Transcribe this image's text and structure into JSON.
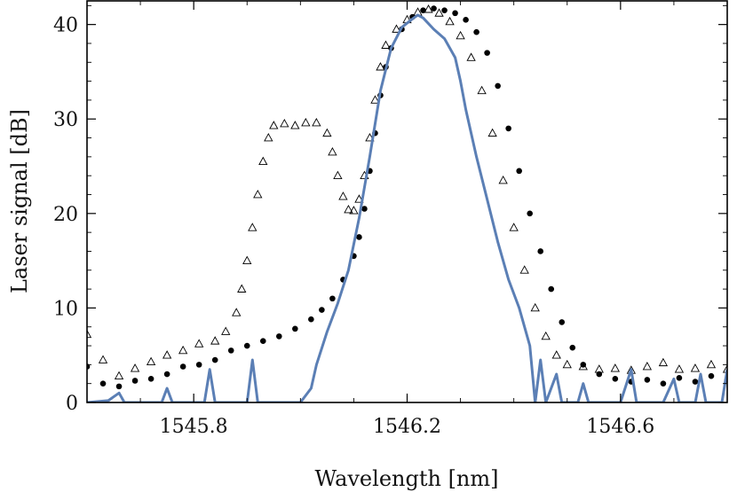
{
  "chart_data": {
    "type": "scatter",
    "title": "",
    "xlabel": "Wavelength [nm]",
    "ylabel": "Laser signal [dB]",
    "xlim": [
      1545.6,
      1546.8
    ],
    "ylim": [
      0,
      42.5
    ],
    "x_ticks": [
      1545.8,
      1546.2,
      1546.6
    ],
    "x_tick_labels": [
      "1545.8",
      "1546.2",
      "1546.6"
    ],
    "y_ticks": [
      0,
      10,
      20,
      30,
      40
    ],
    "y_tick_labels": [
      "0",
      "10",
      "20",
      "30",
      "40"
    ],
    "grid": false,
    "legend": "none",
    "series": [
      {
        "name": "open triangles",
        "style": "triangle-open",
        "color": "#000000",
        "points": [
          [
            1545.6,
            7.2
          ],
          [
            1545.63,
            4.5
          ],
          [
            1545.66,
            2.8
          ],
          [
            1545.69,
            3.6
          ],
          [
            1545.72,
            4.3
          ],
          [
            1545.75,
            5.0
          ],
          [
            1545.78,
            5.5
          ],
          [
            1545.81,
            6.2
          ],
          [
            1545.84,
            6.5
          ],
          [
            1545.86,
            7.5
          ],
          [
            1545.88,
            9.5
          ],
          [
            1545.89,
            12.0
          ],
          [
            1545.9,
            15.0
          ],
          [
            1545.91,
            18.5
          ],
          [
            1545.92,
            22.0
          ],
          [
            1545.93,
            25.5
          ],
          [
            1545.94,
            28.0
          ],
          [
            1545.95,
            29.3
          ],
          [
            1545.97,
            29.5
          ],
          [
            1545.99,
            29.3
          ],
          [
            1546.01,
            29.6
          ],
          [
            1546.03,
            29.6
          ],
          [
            1546.05,
            28.5
          ],
          [
            1546.06,
            26.5
          ],
          [
            1546.07,
            24.0
          ],
          [
            1546.08,
            21.8
          ],
          [
            1546.09,
            20.4
          ],
          [
            1546.1,
            20.3
          ],
          [
            1546.11,
            21.5
          ],
          [
            1546.12,
            24.0
          ],
          [
            1546.13,
            28.0
          ],
          [
            1546.14,
            32.0
          ],
          [
            1546.15,
            35.5
          ],
          [
            1546.16,
            37.8
          ],
          [
            1546.18,
            39.5
          ],
          [
            1546.2,
            40.5
          ],
          [
            1546.22,
            41.3
          ],
          [
            1546.24,
            41.6
          ],
          [
            1546.26,
            41.2
          ],
          [
            1546.28,
            40.3
          ],
          [
            1546.3,
            38.8
          ],
          [
            1546.32,
            36.5
          ],
          [
            1546.34,
            33.0
          ],
          [
            1546.36,
            28.5
          ],
          [
            1546.38,
            23.5
          ],
          [
            1546.4,
            18.5
          ],
          [
            1546.42,
            14.0
          ],
          [
            1546.44,
            10.0
          ],
          [
            1546.46,
            7.0
          ],
          [
            1546.48,
            5.0
          ],
          [
            1546.5,
            4.0
          ],
          [
            1546.53,
            3.8
          ],
          [
            1546.56,
            3.5
          ],
          [
            1546.59,
            3.6
          ],
          [
            1546.62,
            3.4
          ],
          [
            1546.65,
            3.8
          ],
          [
            1546.68,
            4.2
          ],
          [
            1546.71,
            3.5
          ],
          [
            1546.74,
            3.6
          ],
          [
            1546.77,
            4.0
          ],
          [
            1546.8,
            3.5
          ]
        ]
      },
      {
        "name": "filled circles",
        "style": "circle-filled",
        "color": "#000000",
        "points": [
          [
            1545.6,
            3.8
          ],
          [
            1545.63,
            2.0
          ],
          [
            1545.66,
            1.7
          ],
          [
            1545.69,
            2.3
          ],
          [
            1545.72,
            2.5
          ],
          [
            1545.75,
            3.0
          ],
          [
            1545.78,
            3.8
          ],
          [
            1545.81,
            4.0
          ],
          [
            1545.84,
            4.5
          ],
          [
            1545.87,
            5.5
          ],
          [
            1545.9,
            6.0
          ],
          [
            1545.93,
            6.5
          ],
          [
            1545.96,
            7.0
          ],
          [
            1545.99,
            7.8
          ],
          [
            1546.02,
            8.8
          ],
          [
            1546.04,
            9.8
          ],
          [
            1546.06,
            11.0
          ],
          [
            1546.08,
            13.0
          ],
          [
            1546.1,
            15.5
          ],
          [
            1546.11,
            17.5
          ],
          [
            1546.12,
            20.5
          ],
          [
            1546.13,
            24.5
          ],
          [
            1546.14,
            28.5
          ],
          [
            1546.15,
            32.5
          ],
          [
            1546.16,
            35.5
          ],
          [
            1546.17,
            37.5
          ],
          [
            1546.19,
            39.5
          ],
          [
            1546.21,
            40.8
          ],
          [
            1546.23,
            41.5
          ],
          [
            1546.25,
            41.7
          ],
          [
            1546.27,
            41.5
          ],
          [
            1546.29,
            41.2
          ],
          [
            1546.31,
            40.5
          ],
          [
            1546.33,
            39.2
          ],
          [
            1546.35,
            37.0
          ],
          [
            1546.37,
            33.5
          ],
          [
            1546.39,
            29.0
          ],
          [
            1546.41,
            24.5
          ],
          [
            1546.43,
            20.0
          ],
          [
            1546.45,
            16.0
          ],
          [
            1546.47,
            12.0
          ],
          [
            1546.49,
            8.5
          ],
          [
            1546.51,
            5.8
          ],
          [
            1546.53,
            4.0
          ],
          [
            1546.56,
            3.0
          ],
          [
            1546.59,
            2.5
          ],
          [
            1546.62,
            2.2
          ],
          [
            1546.65,
            2.4
          ],
          [
            1546.68,
            2.0
          ],
          [
            1546.71,
            2.6
          ],
          [
            1546.74,
            2.2
          ],
          [
            1546.77,
            2.8
          ],
          [
            1546.8,
            2.4
          ]
        ]
      },
      {
        "name": "solid line",
        "style": "line",
        "color": "#5b7fb5",
        "points": [
          [
            1545.6,
            0.0
          ],
          [
            1545.64,
            0.2
          ],
          [
            1545.66,
            1.0
          ],
          [
            1545.67,
            0.0
          ],
          [
            1545.74,
            0.0
          ],
          [
            1545.75,
            1.5
          ],
          [
            1545.76,
            0.0
          ],
          [
            1545.82,
            0.0
          ],
          [
            1545.83,
            3.5
          ],
          [
            1545.84,
            0.0
          ],
          [
            1545.9,
            0.0
          ],
          [
            1545.91,
            4.5
          ],
          [
            1545.92,
            0.0
          ],
          [
            1546.0,
            0.0
          ],
          [
            1546.02,
            1.5
          ],
          [
            1546.03,
            4.0
          ],
          [
            1546.05,
            7.5
          ],
          [
            1546.07,
            10.5
          ],
          [
            1546.09,
            14.0
          ],
          [
            1546.11,
            19.5
          ],
          [
            1546.13,
            26.0
          ],
          [
            1546.15,
            33.0
          ],
          [
            1546.17,
            37.5
          ],
          [
            1546.19,
            39.7
          ],
          [
            1546.21,
            40.6
          ],
          [
            1546.22,
            41.0
          ],
          [
            1546.23,
            40.7
          ],
          [
            1546.25,
            39.5
          ],
          [
            1546.27,
            38.5
          ],
          [
            1546.29,
            36.5
          ],
          [
            1546.3,
            34.0
          ],
          [
            1546.31,
            31.0
          ],
          [
            1546.33,
            26.0
          ],
          [
            1546.35,
            21.5
          ],
          [
            1546.37,
            17.0
          ],
          [
            1546.39,
            13.0
          ],
          [
            1546.41,
            10.0
          ],
          [
            1546.42,
            8.0
          ],
          [
            1546.43,
            6.0
          ],
          [
            1546.44,
            0.0
          ],
          [
            1546.45,
            4.5
          ],
          [
            1546.46,
            0.0
          ],
          [
            1546.48,
            3.0
          ],
          [
            1546.49,
            0.0
          ],
          [
            1546.52,
            0.0
          ],
          [
            1546.53,
            2.0
          ],
          [
            1546.54,
            0.0
          ],
          [
            1546.6,
            0.0
          ],
          [
            1546.62,
            3.5
          ],
          [
            1546.63,
            0.0
          ],
          [
            1546.68,
            0.0
          ],
          [
            1546.7,
            2.5
          ],
          [
            1546.71,
            0.0
          ],
          [
            1546.74,
            0.0
          ],
          [
            1546.75,
            3.0
          ],
          [
            1546.76,
            0.0
          ],
          [
            1546.79,
            0.0
          ],
          [
            1546.8,
            3.5
          ]
        ]
      }
    ]
  }
}
